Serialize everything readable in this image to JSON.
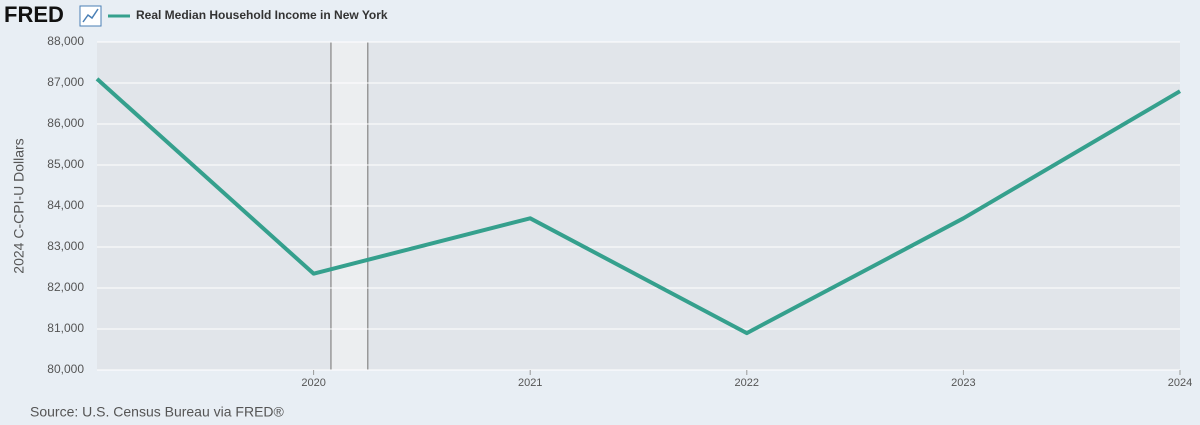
{
  "chart_data": {
    "type": "line",
    "logo": "FRED",
    "title": "Real Median Household Income in New York",
    "y_label": "2024 C-CPI-U Dollars",
    "source": "Source: U.S. Census Bureau via FRED®",
    "x": [
      2019,
      2020,
      2021,
      2022,
      2023,
      2024
    ],
    "series": [
      {
        "name": "Real Median Household Income in New York",
        "color": "#35a08d",
        "values": [
          87100,
          82350,
          83700,
          80900,
          83700,
          86800
        ]
      }
    ],
    "xlim": [
      2019,
      2024
    ],
    "xticks": [
      2020,
      2021,
      2022,
      2023,
      2024
    ],
    "ylim": [
      80000,
      88000
    ],
    "yticks": [
      {
        "value": 80000,
        "label": "80,000"
      },
      {
        "value": 81000,
        "label": "81,000"
      },
      {
        "value": 82000,
        "label": "82,000"
      },
      {
        "value": 83000,
        "label": "83,000"
      },
      {
        "value": 84000,
        "label": "84,000"
      },
      {
        "value": 85000,
        "label": "85,000"
      },
      {
        "value": 86000,
        "label": "86,000"
      },
      {
        "value": 87000,
        "label": "87,000"
      },
      {
        "value": 88000,
        "label": "88,000"
      }
    ],
    "recession": [
      2020.08,
      2020.25
    ],
    "grid": true
  }
}
